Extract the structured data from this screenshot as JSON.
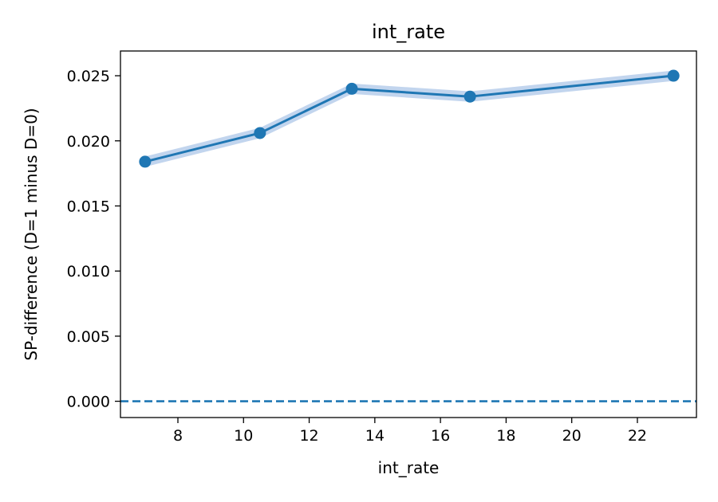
{
  "chart_data": {
    "type": "line",
    "title": "int_rate",
    "xlabel": "int_rate",
    "ylabel": "SP-difference (D=1 minus D=0)",
    "xlim": [
      6.25,
      23.8
    ],
    "ylim": [
      -0.00125,
      0.0269
    ],
    "x_ticks": [
      8,
      10,
      12,
      14,
      16,
      18,
      20,
      22
    ],
    "y_ticks": [
      0.0,
      0.005,
      0.01,
      0.015,
      0.02,
      0.025
    ],
    "y_tick_labels": [
      "0.000",
      "0.005",
      "0.010",
      "0.015",
      "0.020",
      "0.025"
    ],
    "grid": false,
    "series": [
      {
        "x": [
          7.0,
          10.5,
          13.3,
          16.9,
          23.1
        ],
        "y": [
          0.0184,
          0.0206,
          0.024,
          0.0234,
          0.025
        ],
        "band_lower": [
          0.018,
          0.0202,
          0.0236,
          0.023,
          0.0246
        ],
        "band_upper": [
          0.0188,
          0.021,
          0.0244,
          0.0238,
          0.0254
        ],
        "color": "#1f77b4",
        "band_color": "#aec7e8"
      }
    ],
    "reference_line": {
      "y": 0.0,
      "style": "dashed",
      "color": "#1f77b4"
    }
  }
}
